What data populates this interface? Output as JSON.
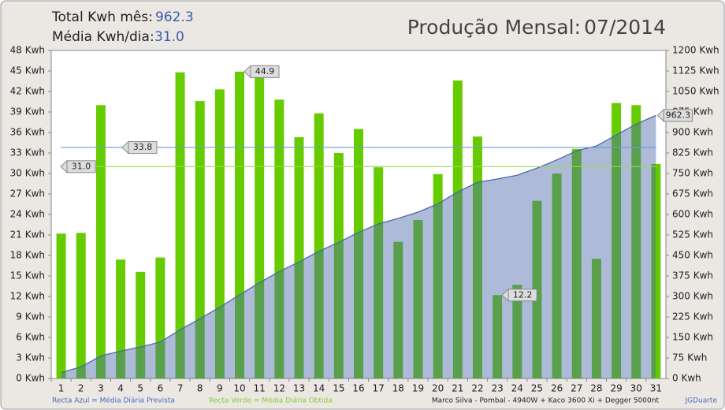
{
  "header": {
    "total_label": "Total Kwh mês:",
    "total_value": "962.3",
    "avg_label": "Média Kwh/dia:",
    "avg_value": "31.0",
    "title": "Produção Mensal:",
    "period": "07/2014"
  },
  "chart_data": {
    "type": "bar",
    "categories": [
      "1",
      "2",
      "3",
      "4",
      "5",
      "6",
      "7",
      "8",
      "9",
      "10",
      "11",
      "12",
      "13",
      "14",
      "15",
      "16",
      "17",
      "18",
      "19",
      "20",
      "21",
      "22",
      "23",
      "24",
      "25",
      "26",
      "27",
      "28",
      "29",
      "30",
      "31"
    ],
    "series": [
      {
        "type": "bar",
        "color": "#66cc00",
        "values": [
          21.2,
          21.3,
          40.0,
          17.4,
          15.6,
          17.7,
          44.8,
          40.6,
          42.3,
          44.9,
          44.4,
          40.8,
          35.3,
          38.8,
          33.0,
          36.5,
          30.9,
          20.0,
          23.2,
          29.9,
          43.6,
          35.4,
          12.2,
          13.7,
          26.0,
          30.0,
          33.6,
          17.5,
          40.3,
          40.0,
          31.4
        ],
        "label_points": [
          9,
          22
        ]
      },
      {
        "type": "area",
        "axis": "y2",
        "color": "#4a68a8",
        "values": [
          21.2,
          42.5,
          82.5,
          99.9,
          115.5,
          133.2,
          178.0,
          218.6,
          260.9,
          305.8,
          350.2,
          391.0,
          426.3,
          465.1,
          498.1,
          534.6,
          565.5,
          585.5,
          608.7,
          638.6,
          682.2,
          717.6,
          729.8,
          743.5,
          769.5,
          799.5,
          833.1,
          850.6,
          890.9,
          930.9,
          962.3
        ],
        "label_points": [
          30
        ]
      }
    ],
    "reference_lines": [
      {
        "value": 33.8,
        "color": "#6a9ae0"
      },
      {
        "value": 31,
        "label": "31.0",
        "color": "#9ad84a"
      }
    ],
    "ylim": [
      0,
      48
    ],
    "yticks": [
      {
        "value": 0,
        "label": "0 Kwh"
      },
      {
        "value": 3,
        "label": "3 Kwh"
      },
      {
        "value": 6,
        "label": "6 Kwh"
      },
      {
        "value": 9,
        "label": "9 Kwh"
      },
      {
        "value": 12,
        "label": "12 Kwh"
      },
      {
        "value": 15,
        "label": "15 Kwh"
      },
      {
        "value": 18,
        "label": "18 Kwh"
      },
      {
        "value": 21,
        "label": "21 Kwh"
      },
      {
        "value": 24,
        "label": "24 Kwh"
      },
      {
        "value": 27,
        "label": "27 Kwh"
      },
      {
        "value": 30,
        "label": "30 Kwh"
      },
      {
        "value": 33,
        "label": "33 Kwh"
      },
      {
        "value": 36,
        "label": "36 Kwh"
      },
      {
        "value": 39,
        "label": "39 Kwh"
      },
      {
        "value": 42,
        "label": "42 Kwh"
      },
      {
        "value": 45,
        "label": "45 Kwh"
      },
      {
        "value": 48,
        "label": "48 Kwh"
      }
    ],
    "y2lim": [
      0,
      1200
    ],
    "y2ticks": [
      {
        "value": 0,
        "label": "0 Kwh"
      },
      {
        "value": 75,
        "label": "75 Kwh"
      },
      {
        "value": 150,
        "label": "150 Kwh"
      },
      {
        "value": 225,
        "label": "225 Kwh"
      },
      {
        "value": 300,
        "label": "300 Kwh"
      },
      {
        "value": 375,
        "label": "375 Kwh"
      },
      {
        "value": 450,
        "label": "450 Kwh"
      },
      {
        "value": 525,
        "label": "525 Kwh"
      },
      {
        "value": 600,
        "label": "600 Kwh"
      },
      {
        "value": 675,
        "label": "675 Kwh"
      },
      {
        "value": 750,
        "label": "750 Kwh"
      },
      {
        "value": 825,
        "label": "825 Kwh"
      },
      {
        "value": 900,
        "label": "900 Kwh"
      },
      {
        "value": 975,
        "label": "975 Kwh"
      },
      {
        "value": 1050,
        "label": "1050 Kwh"
      },
      {
        "value": 1125,
        "label": "1125 Kwh"
      },
      {
        "value": 1200,
        "label": "1200 Kwh"
      }
    ],
    "grid": false
  },
  "footer": {
    "legend_blue": "Recta Azul = Média Diária Prevista",
    "legend_green": "Recta Verde = Média Diária Obtida",
    "credits": "Marco Silva - Pombal - 4940W + Kaco 3600 Xi + Degger 5000nt",
    "author": "JGDuarte"
  }
}
